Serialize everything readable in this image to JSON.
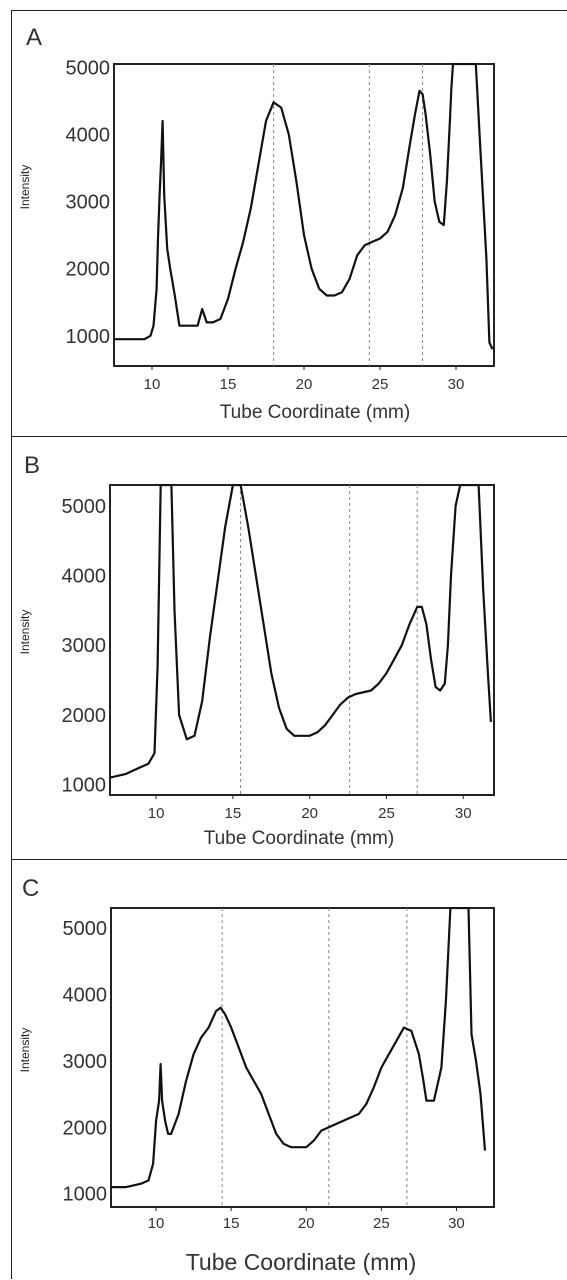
{
  "chart_data": [
    {
      "type": "line",
      "panel_label": "A",
      "xlabel": "Tube Coordinate (mm)",
      "ylabel": "Intensity",
      "xlim": [
        7.5,
        32.5
      ],
      "ylim": [
        550,
        5050
      ],
      "xticks": [
        10,
        15,
        20,
        25,
        30
      ],
      "yticks": [
        1000,
        2000,
        3000,
        4000,
        5000
      ],
      "ytick_labels": [
        "1000",
        "2000",
        "3000",
        "4000",
        "5000"
      ],
      "markers": [
        18.0,
        24.3,
        27.8
      ],
      "series": [
        {
          "x": [
            7.5,
            9.5,
            9.9,
            10.1,
            10.3,
            10.4,
            10.5,
            10.6,
            10.7,
            10.8,
            10.9,
            11.0,
            11.2,
            11.5,
            11.8,
            12.0,
            12.5,
            13.0,
            13.3,
            13.6,
            14.0,
            14.5,
            15.0,
            15.5,
            16.0,
            16.5,
            17.0,
            17.5,
            18.0,
            18.5,
            19.0,
            19.5,
            20.0,
            20.5,
            21.0,
            21.5,
            22.0,
            22.5,
            23.0,
            23.5,
            24.0,
            24.5,
            25.0,
            25.5,
            26.0,
            26.5,
            27.0,
            27.3,
            27.6,
            27.8,
            28.0,
            28.3,
            28.6,
            28.9,
            29.2,
            29.4,
            29.6,
            29.7,
            29.8,
            30.0,
            30.5,
            31.0,
            31.3,
            31.6,
            32.0,
            32.2,
            32.4
          ],
          "y": [
            950,
            950,
            1000,
            1150,
            1700,
            2500,
            3100,
            3600,
            4200,
            3100,
            2700,
            2300,
            2000,
            1600,
            1150,
            1150,
            1150,
            1150,
            1400,
            1200,
            1200,
            1250,
            1550,
            2000,
            2400,
            2900,
            3550,
            4200,
            4480,
            4400,
            4000,
            3300,
            2500,
            2000,
            1700,
            1600,
            1600,
            1650,
            1850,
            2200,
            2350,
            2400,
            2450,
            2550,
            2800,
            3200,
            3900,
            4300,
            4650,
            4600,
            4300,
            3700,
            3000,
            2700,
            2650,
            3300,
            4200,
            4700,
            5050,
            5050,
            5050,
            5050,
            5050,
            3800,
            2150,
            900,
            800
          ]
        }
      ]
    },
    {
      "type": "line",
      "panel_label": "B",
      "xlabel": "Tube Coordinate (mm)",
      "ylabel": "Intensity",
      "xlim": [
        7,
        32
      ],
      "ylim": [
        850,
        5300
      ],
      "xticks": [
        10,
        15,
        20,
        25,
        30
      ],
      "yticks": [
        1000,
        2000,
        3000,
        4000,
        5000
      ],
      "ytick_labels": [
        "1000",
        "2000",
        "3000",
        "4000",
        "5000"
      ],
      "markers": [
        15.5,
        22.6,
        27.0
      ],
      "series": [
        {
          "x": [
            7.0,
            8.0,
            9.0,
            9.5,
            9.9,
            10.1,
            10.3,
            10.5,
            10.8,
            11.0,
            11.2,
            11.5,
            12.0,
            12.5,
            13.0,
            13.5,
            14.0,
            14.5,
            15.0,
            15.5,
            16.0,
            16.5,
            17.0,
            17.5,
            18.0,
            18.5,
            19.0,
            20.0,
            20.5,
            21.0,
            21.5,
            22.0,
            22.5,
            23.0,
            24.0,
            24.5,
            25.0,
            25.5,
            26.0,
            26.5,
            27.0,
            27.3,
            27.6,
            27.9,
            28.2,
            28.5,
            28.8,
            29.0,
            29.2,
            29.5,
            29.8,
            30.0,
            30.2,
            30.5,
            30.8,
            31.0,
            31.3,
            31.6,
            31.8
          ],
          "y": [
            1100,
            1150,
            1250,
            1300,
            1450,
            2700,
            5300,
            5300,
            5300,
            5300,
            3500,
            2000,
            1650,
            1700,
            2200,
            3100,
            3900,
            4700,
            5300,
            5300,
            4700,
            4000,
            3300,
            2600,
            2100,
            1800,
            1700,
            1700,
            1750,
            1850,
            2000,
            2150,
            2250,
            2300,
            2350,
            2450,
            2600,
            2800,
            3000,
            3300,
            3550,
            3550,
            3300,
            2800,
            2400,
            2350,
            2450,
            3000,
            4000,
            5000,
            5300,
            5300,
            5300,
            5300,
            5300,
            5300,
            3800,
            2600,
            1900
          ]
        }
      ]
    },
    {
      "type": "line",
      "panel_label": "C",
      "xlabel": "Tube Coordinate (mm)",
      "ylabel": "Intensity",
      "xlim": [
        7,
        32.5
      ],
      "ylim": [
        800,
        5300
      ],
      "xticks": [
        10,
        15,
        20,
        25,
        30
      ],
      "yticks": [
        1000,
        2000,
        3000,
        4000,
        5000
      ],
      "ytick_labels": [
        "1000",
        "2000",
        "3000",
        "4000",
        "5000"
      ],
      "markers": [
        14.4,
        21.5,
        26.7
      ],
      "series": [
        {
          "x": [
            7.0,
            8.0,
            9.0,
            9.5,
            9.8,
            10.0,
            10.2,
            10.3,
            10.4,
            10.6,
            10.8,
            11.0,
            11.5,
            12.0,
            12.5,
            13.0,
            13.5,
            14.0,
            14.3,
            14.6,
            15.0,
            15.5,
            16.0,
            16.5,
            17.0,
            17.5,
            18.0,
            18.5,
            19.0,
            20.0,
            20.5,
            21.0,
            21.5,
            22.0,
            23.0,
            23.5,
            24.0,
            24.5,
            25.0,
            25.5,
            26.0,
            26.5,
            27.0,
            27.5,
            27.8,
            28.0,
            28.5,
            29.0,
            29.3,
            29.6,
            30.0,
            30.3,
            30.6,
            30.8,
            31.0,
            31.3,
            31.6,
            31.9
          ],
          "y": [
            1100,
            1100,
            1150,
            1200,
            1450,
            2100,
            2400,
            2950,
            2400,
            2100,
            1900,
            1900,
            2200,
            2700,
            3100,
            3350,
            3500,
            3750,
            3800,
            3700,
            3500,
            3200,
            2900,
            2700,
            2500,
            2200,
            1900,
            1750,
            1700,
            1700,
            1800,
            1950,
            2000,
            2050,
            2150,
            2200,
            2350,
            2600,
            2900,
            3100,
            3300,
            3500,
            3450,
            3100,
            2700,
            2400,
            2400,
            2900,
            3900,
            5300,
            5300,
            5300,
            5300,
            5300,
            3400,
            3000,
            2500,
            1650
          ]
        }
      ]
    }
  ]
}
